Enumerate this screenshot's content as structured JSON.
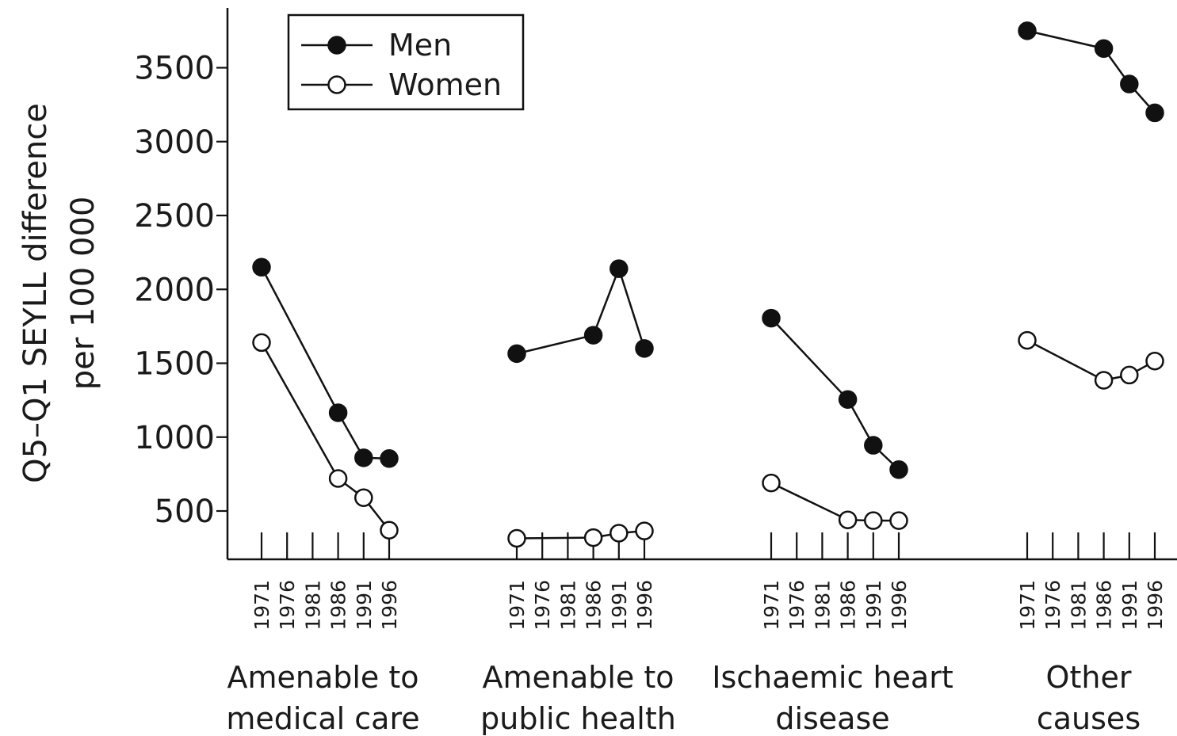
{
  "chart_data": {
    "type": "line",
    "ylabel": [
      "Q5–Q1 SEYLL difference",
      "per 100 000"
    ],
    "y_ticks": [
      500,
      1000,
      1500,
      2000,
      2500,
      3000,
      3500
    ],
    "ylim": [
      200,
      3900
    ],
    "years": [
      "1971",
      "1976",
      "1981",
      "1986",
      "1991",
      "1996"
    ],
    "legend": {
      "position": "top-left",
      "entries": [
        "Men",
        "Women"
      ]
    },
    "groups": [
      {
        "label": [
          "Amenable to",
          "medical care"
        ],
        "series": [
          {
            "name": "Men",
            "marker": "filled",
            "x": [
              1971,
              1986,
              1991,
              1996
            ],
            "y": [
              2150,
              1165,
              860,
              855
            ]
          },
          {
            "name": "Women",
            "marker": "open",
            "x": [
              1971,
              1986,
              1991,
              1996
            ],
            "y": [
              1640,
              720,
              590,
              370
            ]
          }
        ]
      },
      {
        "label": [
          "Amenable to",
          "public health"
        ],
        "series": [
          {
            "name": "Men",
            "marker": "filled",
            "x": [
              1971,
              1986,
              1991,
              1996
            ],
            "y": [
              1565,
              1690,
              2140,
              1600
            ]
          },
          {
            "name": "Women",
            "marker": "open",
            "x": [
              1971,
              1986,
              1991,
              1996
            ],
            "y": [
              315,
              320,
              350,
              365
            ]
          }
        ]
      },
      {
        "label": [
          "Ischaemic heart",
          "disease"
        ],
        "series": [
          {
            "name": "Men",
            "marker": "filled",
            "x": [
              1971,
              1986,
              1991,
              1996
            ],
            "y": [
              1805,
              1255,
              945,
              780
            ]
          },
          {
            "name": "Women",
            "marker": "open",
            "x": [
              1971,
              1986,
              1991,
              1996
            ],
            "y": [
              690,
              440,
              435,
              435
            ]
          }
        ]
      },
      {
        "label": [
          "Other",
          "causes"
        ],
        "series": [
          {
            "name": "Men",
            "marker": "filled",
            "x": [
              1971,
              1986,
              1991,
              1996
            ],
            "y": [
              3750,
              3630,
              3390,
              3195
            ]
          },
          {
            "name": "Women",
            "marker": "open",
            "x": [
              1971,
              1986,
              1991,
              1996
            ],
            "y": [
              1655,
              1385,
              1420,
              1515
            ]
          }
        ]
      }
    ]
  }
}
